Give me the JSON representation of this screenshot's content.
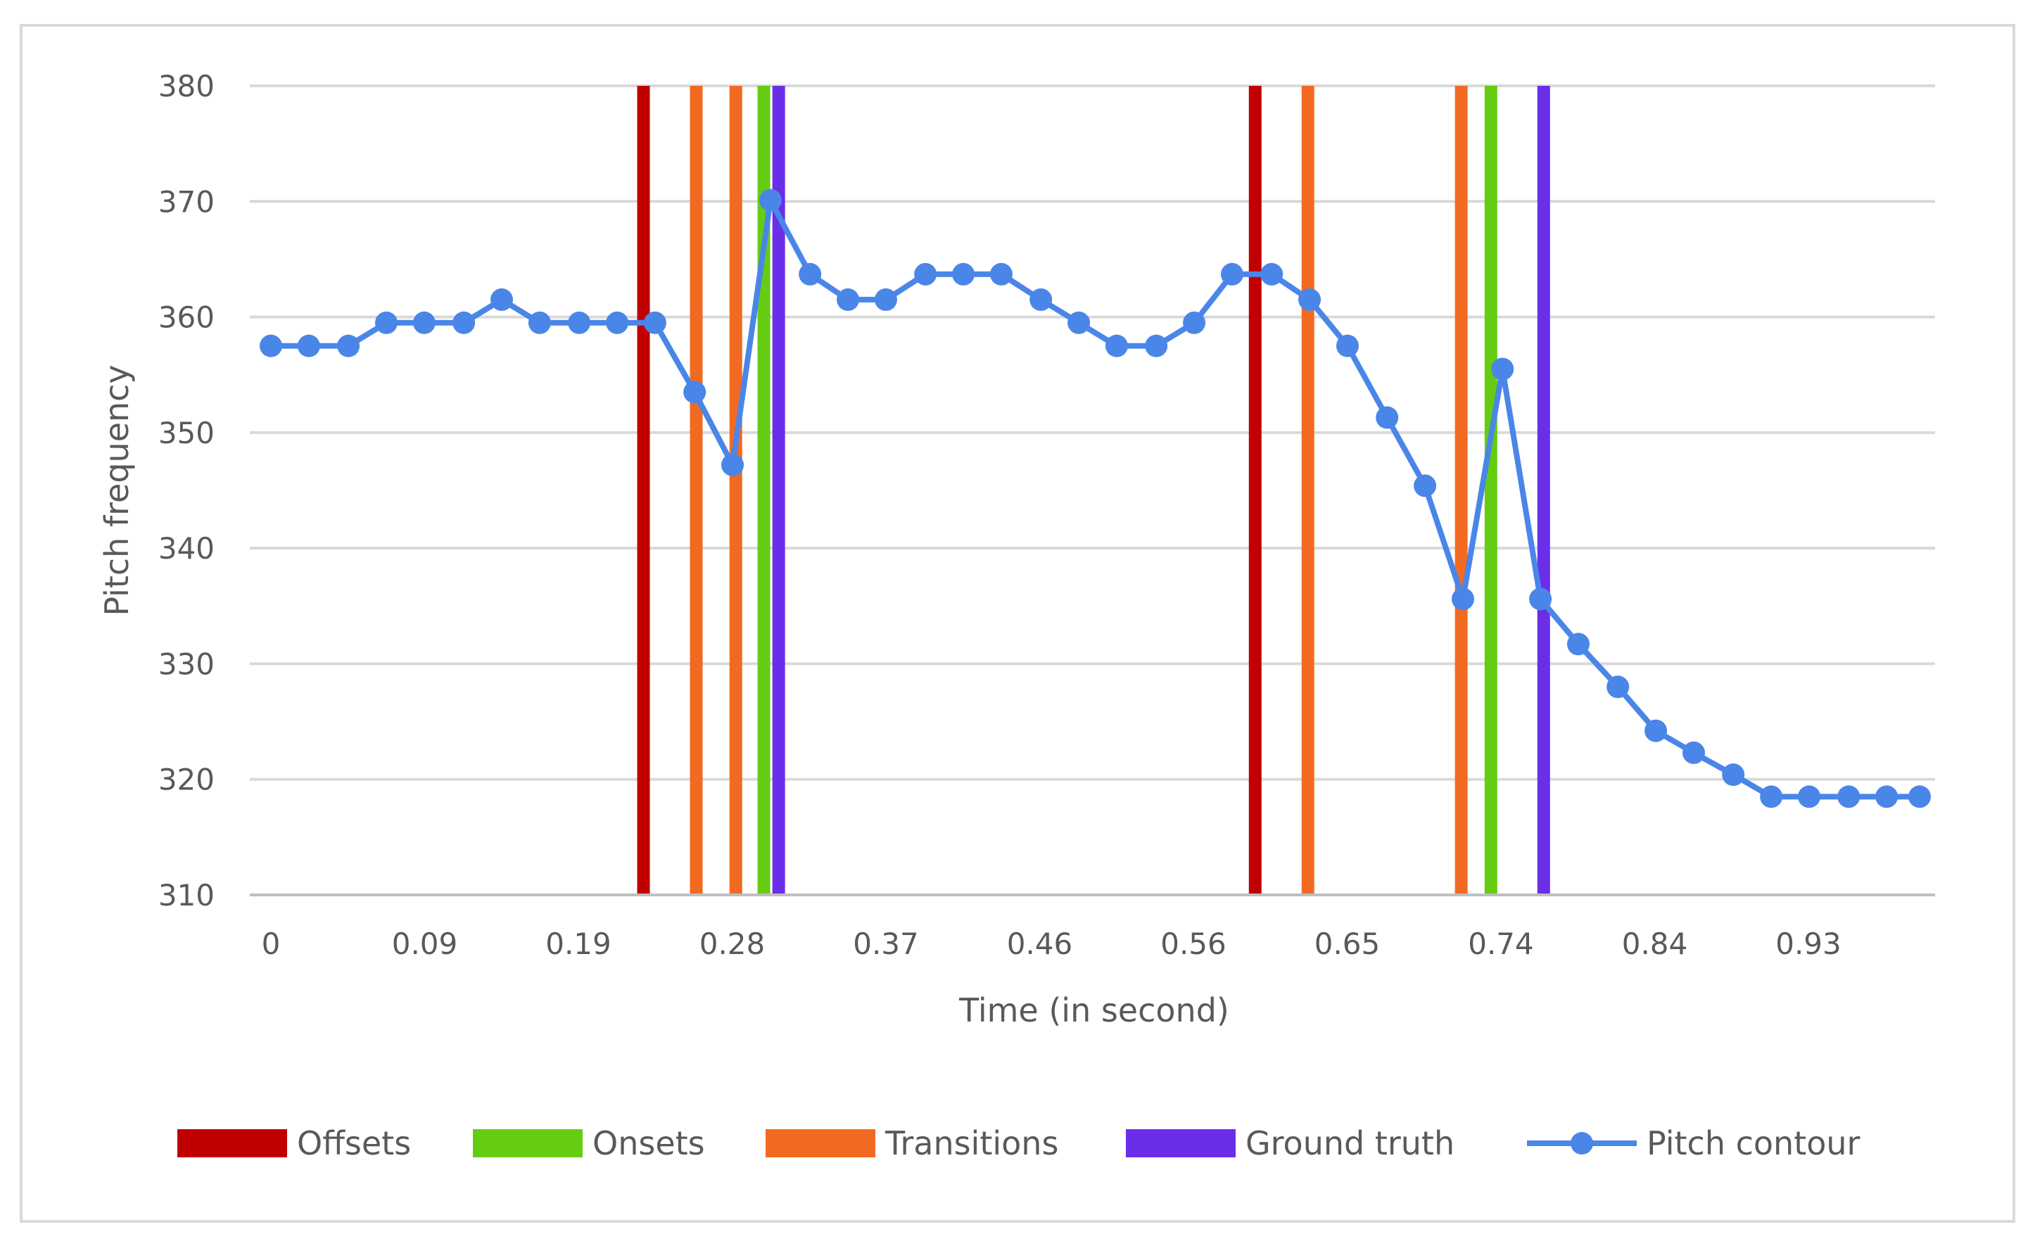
{
  "chart_data": {
    "type": "line",
    "xlabel": "Time (in second)",
    "ylabel": "Pitch frequency",
    "ylim": [
      310,
      380
    ],
    "yticks": [
      310,
      320,
      330,
      340,
      350,
      360,
      370,
      380
    ],
    "x_tick_labels": [
      "0",
      "0.09",
      "0.19",
      "0.28",
      "0.37",
      "0.46",
      "0.56",
      "0.65",
      "0.74",
      "0.84",
      "0.93"
    ],
    "grid": true,
    "legend_position": "bottom",
    "series": [
      {
        "name": "Pitch contour",
        "kind": "line-markers",
        "color": "#4a86e8",
        "x": [
          0,
          0.023,
          0.047,
          0.07,
          0.093,
          0.117,
          0.14,
          0.163,
          0.187,
          0.21,
          0.233,
          0.257,
          0.28,
          0.303,
          0.327,
          0.35,
          0.373,
          0.397,
          0.42,
          0.443,
          0.467,
          0.49,
          0.513,
          0.537,
          0.56,
          0.583,
          0.607,
          0.63,
          0.653,
          0.677,
          0.7,
          0.723,
          0.747,
          0.77,
          0.793,
          0.817,
          0.84,
          0.863,
          0.887,
          0.91,
          0.933,
          0.957,
          0.98,
          1.0
        ],
        "values": [
          357.5,
          357.5,
          357.5,
          359.5,
          359.5,
          359.5,
          361.5,
          359.5,
          359.5,
          359.5,
          359.5,
          353.5,
          347.2,
          370.1,
          363.7,
          361.5,
          361.5,
          363.7,
          363.7,
          363.7,
          361.5,
          359.5,
          357.5,
          357.5,
          359.5,
          363.7,
          363.7,
          361.5,
          357.5,
          351.3,
          345.4,
          335.6,
          355.5,
          335.6,
          331.7,
          328.0,
          324.2,
          322.3,
          320.4,
          318.5,
          318.5,
          318.5,
          318.5,
          318.5
        ]
      },
      {
        "name": "Offsets",
        "kind": "vertical-bars",
        "color": "#c00000",
        "x": [
          0.226,
          0.597
        ]
      },
      {
        "name": "Onsets",
        "kind": "vertical-bars",
        "color": "#66cc11",
        "x": [
          0.299,
          0.74
        ]
      },
      {
        "name": "Transitions",
        "kind": "vertical-bars",
        "color": "#f26a21",
        "x": [
          0.258,
          0.282,
          0.629,
          0.722
        ]
      },
      {
        "name": "Ground truth",
        "kind": "vertical-bars",
        "color": "#6a2ee8",
        "x": [
          0.308,
          0.772
        ]
      }
    ],
    "legend_order": [
      "Offsets",
      "Onsets",
      "Transitions",
      "Ground truth",
      "Pitch contour"
    ]
  }
}
